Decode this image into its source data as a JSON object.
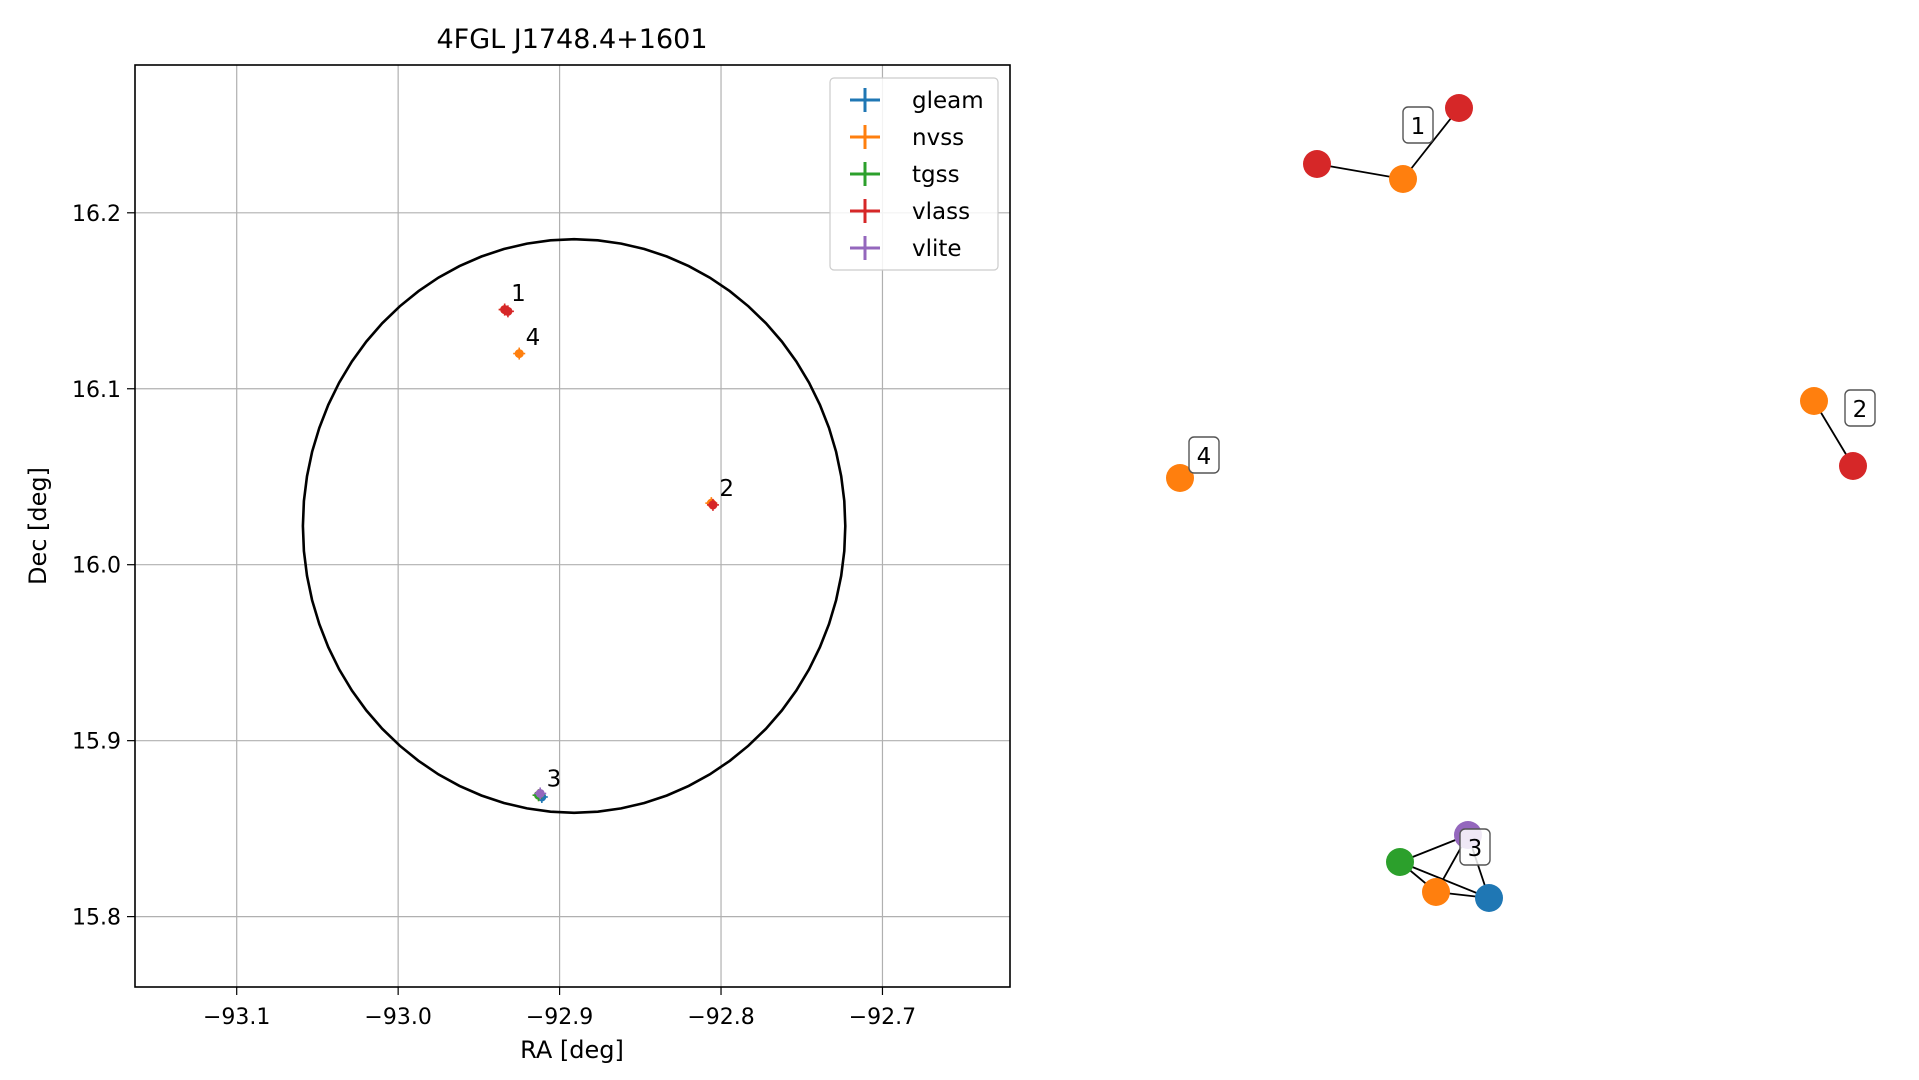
{
  "chart_data": [
    {
      "type": "scatter",
      "title": "4FGL J1748.4+1601",
      "xlabel": "RA [deg]",
      "ylabel": "Dec [deg]",
      "xlim": [
        -93.163,
        -92.621
      ],
      "ylim": [
        15.76,
        16.284
      ],
      "xticks": [
        -93.1,
        -93.0,
        -92.9,
        -92.8,
        -92.7
      ],
      "xtick_labels": [
        "−93.1",
        "−93.0",
        "−92.9",
        "−92.8",
        "−92.7"
      ],
      "yticks": [
        15.8,
        15.9,
        16.0,
        16.1,
        16.2
      ],
      "ytick_labels": [
        "15.8",
        "15.9",
        "16.0",
        "16.1",
        "16.2"
      ],
      "grid": true,
      "legend_position": "top-right",
      "ellipse": {
        "center_ra": -92.891,
        "center_dec": 16.022,
        "semi_ra": 0.168,
        "semi_dec": 0.163,
        "color": "#000000"
      },
      "series": [
        {
          "name": "gleam",
          "color": "#1f77b4",
          "points": [
            {
              "ra": -92.911,
              "dec": 15.868
            }
          ]
        },
        {
          "name": "nvss",
          "color": "#ff7f0e",
          "points": [
            {
              "ra": -92.934,
              "dec": 16.145
            },
            {
              "ra": -92.806,
              "dec": 16.035
            },
            {
              "ra": -92.913,
              "dec": 15.869
            },
            {
              "ra": -92.925,
              "dec": 16.12
            }
          ]
        },
        {
          "name": "tgss",
          "color": "#2ca02c",
          "points": [
            {
              "ra": -92.913,
              "dec": 15.869
            }
          ]
        },
        {
          "name": "vlass",
          "color": "#d62728",
          "points": [
            {
              "ra": -92.934,
              "dec": 16.145
            },
            {
              "ra": -92.932,
              "dec": 16.144
            },
            {
              "ra": -92.805,
              "dec": 16.034
            }
          ]
        },
        {
          "name": "vlite",
          "color": "#9467bd",
          "points": [
            {
              "ra": -92.912,
              "dec": 15.87
            }
          ]
        }
      ],
      "labels": [
        {
          "text": "1",
          "ra": -92.93,
          "dec": 16.15
        },
        {
          "text": "2",
          "ra": -92.801,
          "dec": 16.039
        },
        {
          "text": "3",
          "ra": -92.908,
          "dec": 15.874
        },
        {
          "text": "4",
          "ra": -92.921,
          "dec": 16.125
        }
      ]
    },
    {
      "type": "network",
      "nodes": [
        {
          "id": "n1a",
          "color": "#d62728"
        },
        {
          "id": "n1b",
          "color": "#ff7f0e"
        },
        {
          "id": "n1c",
          "color": "#d62728"
        },
        {
          "id": "n2a",
          "color": "#ff7f0e"
        },
        {
          "id": "n2b",
          "color": "#d62728"
        },
        {
          "id": "n3a",
          "color": "#2ca02c"
        },
        {
          "id": "n3b",
          "color": "#ff7f0e"
        },
        {
          "id": "n3c",
          "color": "#1f77b4"
        },
        {
          "id": "n3d",
          "color": "#9467bd"
        },
        {
          "id": "n4a",
          "color": "#ff7f0e"
        }
      ],
      "edges": [
        [
          "n1a",
          "n1b"
        ],
        [
          "n1b",
          "n1c"
        ],
        [
          "n2a",
          "n2b"
        ],
        [
          "n3a",
          "n3b"
        ],
        [
          "n3a",
          "n3c"
        ],
        [
          "n3a",
          "n3d"
        ],
        [
          "n3b",
          "n3c"
        ],
        [
          "n3b",
          "n3d"
        ],
        [
          "n3c",
          "n3d"
        ]
      ],
      "group_labels": [
        "1",
        "2",
        "3",
        "4"
      ]
    }
  ]
}
